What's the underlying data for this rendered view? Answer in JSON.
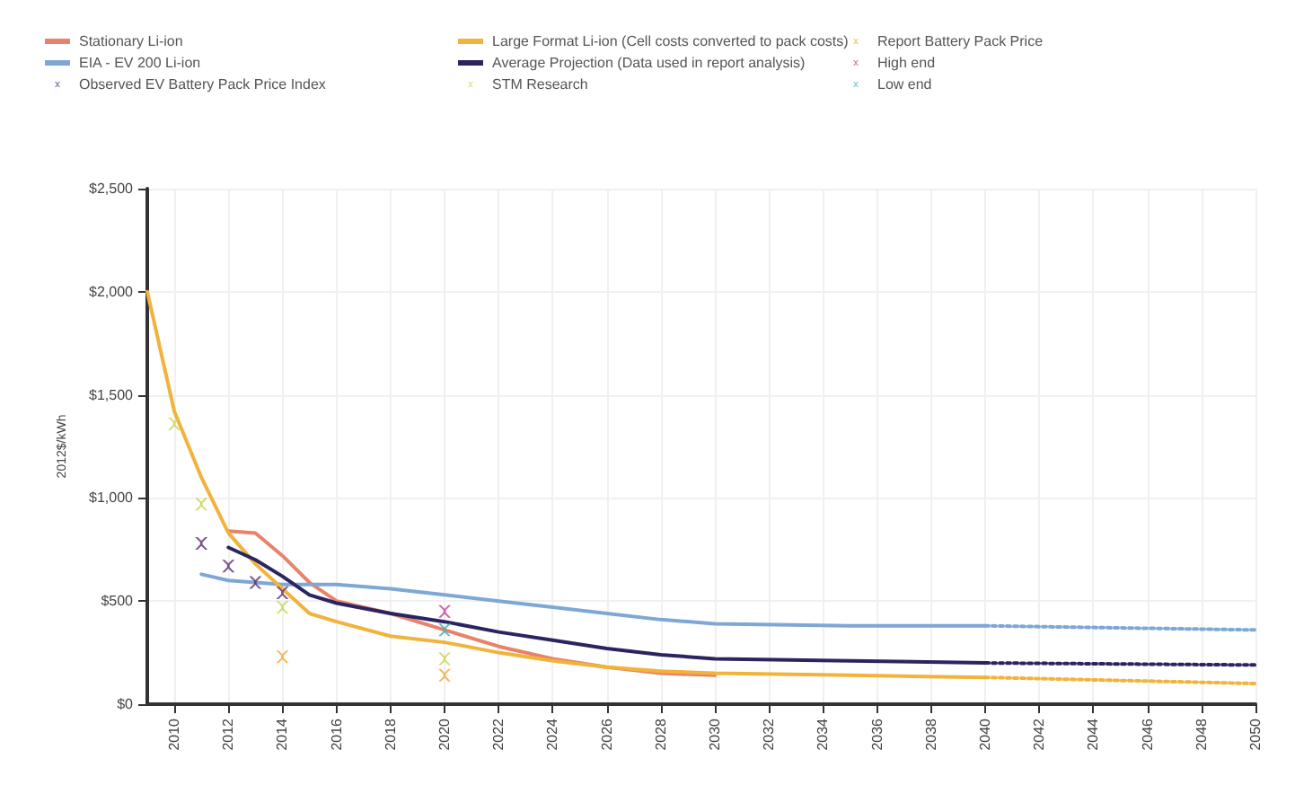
{
  "chart_data": {
    "type": "line",
    "ylabel": "2012$/kWh",
    "xlim": [
      2009,
      2050
    ],
    "xticks": [
      2010,
      2012,
      2014,
      2016,
      2018,
      2020,
      2022,
      2024,
      2026,
      2028,
      2030,
      2032,
      2034,
      2036,
      2038,
      2040,
      2042,
      2044,
      2046,
      2048,
      2050
    ],
    "ylim": [
      0,
      2500
    ],
    "yticks": [
      {
        "value": 0,
        "label": "$0"
      },
      {
        "value": 500,
        "label": "$500"
      },
      {
        "value": 1000,
        "label": "$1,000"
      },
      {
        "value": 1500,
        "label": "$1,500"
      },
      {
        "value": 2000,
        "label": "$2,000"
      },
      {
        "value": 2500,
        "label": "$2,500"
      }
    ],
    "grid": true,
    "legend": "top",
    "marker": "none",
    "line_style": "solid",
    "series": [
      {
        "name": "Stationary Li-ion",
        "color": "#e8826a",
        "x": [
          2012,
          2013,
          2014,
          2015,
          2016,
          2018,
          2020,
          2022,
          2024,
          2026,
          2028,
          2030
        ],
        "values": [
          840,
          830,
          720,
          590,
          500,
          440,
          360,
          280,
          220,
          180,
          150,
          140
        ]
      },
      {
        "name": "EIA - EV 200 Li-ion",
        "color": "#7fa7d6",
        "x": [
          2011,
          2012,
          2013,
          2014,
          2015,
          2016,
          2018,
          2020,
          2022,
          2024,
          2026,
          2028,
          2030,
          2035,
          2040
        ],
        "values": [
          630,
          600,
          590,
          580,
          580,
          580,
          560,
          530,
          500,
          470,
          440,
          410,
          390,
          380,
          380
        ]
      },
      {
        "name": "Observed EV Battery Pack Price Index",
        "type": "scatter",
        "marker": "cross",
        "color": "#5a2a6e",
        "x": [
          2011,
          2012,
          2013,
          2014
        ],
        "values": [
          780,
          670,
          590,
          540
        ]
      },
      {
        "name": "Large Format Li-ion (Cell costs converted to pack costs)",
        "color": "#f2b33d",
        "x": [
          2009,
          2010,
          2011,
          2012,
          2013,
          2014,
          2015,
          2016,
          2018,
          2020,
          2022,
          2024,
          2026,
          2028,
          2030,
          2035,
          2040
        ],
        "values": [
          2000,
          1420,
          1100,
          830,
          680,
          560,
          440,
          400,
          330,
          300,
          250,
          210,
          180,
          160,
          150,
          140,
          130
        ]
      },
      {
        "name": "Average Projection (Data used in report analysis)",
        "color": "#2a2560",
        "x": [
          2012,
          2013,
          2014,
          2015,
          2016,
          2018,
          2020,
          2022,
          2024,
          2026,
          2028,
          2030,
          2035,
          2040
        ],
        "values": [
          760,
          700,
          620,
          530,
          490,
          440,
          400,
          350,
          310,
          270,
          240,
          220,
          210,
          200
        ]
      },
      {
        "name": "STM Research",
        "type": "scatter",
        "marker": "cross",
        "color": "#c8d44a",
        "x": [
          2010,
          2011,
          2014,
          2020
        ],
        "values": [
          1360,
          970,
          470,
          220
        ]
      },
      {
        "name": "Report Battery Pack Price",
        "type": "scatter",
        "marker": "cross",
        "color": "#f2a63a",
        "x": [
          2014,
          2020
        ],
        "values": [
          230,
          140
        ]
      },
      {
        "name": "High end",
        "type": "scatter",
        "marker": "cross",
        "color": "#c83a8f",
        "x": [
          2020
        ],
        "values": [
          450
        ]
      },
      {
        "name": "Low end",
        "type": "scatter",
        "marker": "cross",
        "color": "#3ab3b3",
        "x": [
          2020
        ],
        "values": [
          360
        ]
      },
      {
        "line_style": "dotted",
        "color": "#7fa7d6",
        "x": [
          2040,
          2050
        ],
        "values": [
          380,
          360
        ]
      },
      {
        "line_style": "dotted",
        "color": "#f2b33d",
        "x": [
          2040,
          2050
        ],
        "values": [
          130,
          100
        ]
      },
      {
        "line_style": "dotted",
        "color": "#2a2560",
        "x": [
          2040,
          2050
        ],
        "values": [
          200,
          190
        ]
      }
    ]
  }
}
